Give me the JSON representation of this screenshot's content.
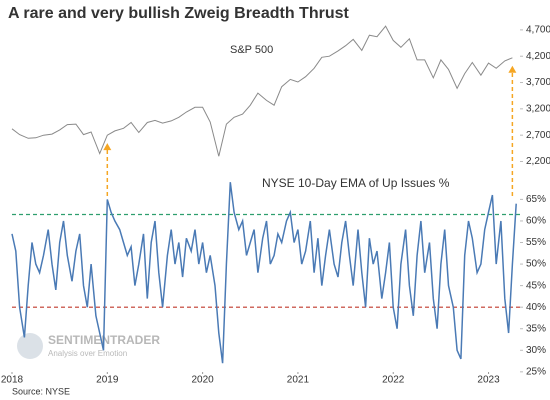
{
  "chart_data": {
    "type": "line",
    "title": "A rare and very bullish Zweig Breadth Thrust",
    "source": "Source: NYSE",
    "watermark": {
      "brand": "SENTIMENTRADER",
      "tagline": "Analysis over Emotion"
    },
    "xlim": [
      2018,
      2023.33
    ],
    "xticks": [
      2018,
      2019,
      2020,
      2021,
      2022,
      2023
    ],
    "signals": [
      2019.0,
      2023.25
    ],
    "signal_color": "#f5a623",
    "panels": [
      {
        "label": "S&P 500",
        "color": "#8a8a8a",
        "ylim": [
          2000,
          4850
        ],
        "yticks": [
          {
            "value": 2200,
            "label": "2,200"
          },
          {
            "value": 2700,
            "label": "2,700"
          },
          {
            "value": 3200,
            "label": "3,200"
          },
          {
            "value": 3700,
            "label": "3,700"
          },
          {
            "value": 4200,
            "label": "4,200"
          },
          {
            "value": 4700,
            "label": "4,700"
          }
        ],
        "x": [
          2018.0,
          2018.08,
          2018.17,
          2018.25,
          2018.33,
          2018.42,
          2018.5,
          2018.58,
          2018.67,
          2018.75,
          2018.83,
          2018.92,
          2019.0,
          2019.08,
          2019.17,
          2019.25,
          2019.33,
          2019.42,
          2019.5,
          2019.58,
          2019.67,
          2019.75,
          2019.83,
          2019.92,
          2020.0,
          2020.08,
          2020.17,
          2020.25,
          2020.33,
          2020.42,
          2020.5,
          2020.58,
          2020.67,
          2020.75,
          2020.83,
          2020.92,
          2021.0,
          2021.08,
          2021.17,
          2021.25,
          2021.33,
          2021.42,
          2021.5,
          2021.58,
          2021.67,
          2021.75,
          2021.83,
          2021.92,
          2022.0,
          2022.08,
          2022.17,
          2022.25,
          2022.33,
          2022.42,
          2022.5,
          2022.58,
          2022.67,
          2022.75,
          2022.83,
          2022.92,
          2023.0,
          2023.08,
          2023.17,
          2023.25
        ],
        "values": [
          2820,
          2710,
          2640,
          2650,
          2700,
          2720,
          2800,
          2900,
          2910,
          2710,
          2760,
          2350,
          2700,
          2780,
          2830,
          2940,
          2750,
          2940,
          2980,
          2930,
          2970,
          3040,
          3140,
          3230,
          3230,
          2950,
          2300,
          2910,
          3040,
          3100,
          3270,
          3500,
          3360,
          3270,
          3620,
          3760,
          3710,
          3810,
          3970,
          4180,
          4200,
          4300,
          4400,
          4520,
          4310,
          4600,
          4570,
          4770,
          4500,
          4370,
          4530,
          4130,
          4130,
          3790,
          4130,
          3950,
          3590,
          3870,
          4080,
          3840,
          4070,
          3970,
          4110,
          4170
        ]
      },
      {
        "label": "NYSE 10-Day EMA of Up Issues %",
        "color": "#4a7ab5",
        "ylim": [
          24.5,
          69.5
        ],
        "yticks": [
          {
            "value": 25,
            "label": "25%"
          },
          {
            "value": 30,
            "label": "30%"
          },
          {
            "value": 35,
            "label": "35%"
          },
          {
            "value": 40,
            "label": "40%"
          },
          {
            "value": 45,
            "label": "45%"
          },
          {
            "value": 50,
            "label": "50%"
          },
          {
            "value": 55,
            "label": "55%"
          },
          {
            "value": 60,
            "label": "60%"
          },
          {
            "value": 65,
            "label": "65%"
          }
        ],
        "reference_lines": [
          {
            "value": 61.5,
            "color": "#2e9e6e"
          },
          {
            "value": 40,
            "color": "#c0392b"
          }
        ],
        "x": [
          2018.0,
          2018.04,
          2018.08,
          2018.13,
          2018.17,
          2018.21,
          2018.25,
          2018.29,
          2018.33,
          2018.38,
          2018.42,
          2018.46,
          2018.5,
          2018.54,
          2018.58,
          2018.63,
          2018.67,
          2018.71,
          2018.75,
          2018.79,
          2018.83,
          2018.88,
          2018.92,
          2018.96,
          2019.0,
          2019.04,
          2019.08,
          2019.13,
          2019.17,
          2019.21,
          2019.25,
          2019.29,
          2019.33,
          2019.38,
          2019.42,
          2019.46,
          2019.5,
          2019.54,
          2019.58,
          2019.63,
          2019.67,
          2019.71,
          2019.75,
          2019.79,
          2019.83,
          2019.88,
          2019.92,
          2019.96,
          2020.0,
          2020.04,
          2020.08,
          2020.13,
          2020.17,
          2020.21,
          2020.25,
          2020.29,
          2020.33,
          2020.38,
          2020.42,
          2020.46,
          2020.5,
          2020.54,
          2020.58,
          2020.63,
          2020.67,
          2020.71,
          2020.75,
          2020.79,
          2020.83,
          2020.88,
          2020.92,
          2020.96,
          2021.0,
          2021.04,
          2021.08,
          2021.13,
          2021.17,
          2021.21,
          2021.25,
          2021.29,
          2021.33,
          2021.38,
          2021.42,
          2021.46,
          2021.5,
          2021.54,
          2021.58,
          2021.63,
          2021.67,
          2021.71,
          2021.75,
          2021.79,
          2021.83,
          2021.88,
          2021.92,
          2021.96,
          2022.0,
          2022.04,
          2022.08,
          2022.13,
          2022.17,
          2022.21,
          2022.25,
          2022.29,
          2022.33,
          2022.38,
          2022.42,
          2022.46,
          2022.5,
          2022.54,
          2022.58,
          2022.63,
          2022.67,
          2022.71,
          2022.75,
          2022.79,
          2022.83,
          2022.88,
          2022.92,
          2022.96,
          2023.0,
          2023.04,
          2023.08,
          2023.13,
          2023.17,
          2023.21,
          2023.25,
          2023.29
        ],
        "values": [
          57,
          53,
          40,
          33,
          45,
          55,
          50,
          48,
          52,
          58,
          50,
          44,
          55,
          60,
          52,
          46,
          53,
          57,
          45,
          40,
          50,
          38,
          34,
          30,
          65,
          62,
          60,
          58,
          55,
          52,
          54,
          45,
          50,
          57,
          42,
          55,
          60,
          48,
          40,
          52,
          58,
          50,
          55,
          47,
          56,
          53,
          58,
          50,
          55,
          48,
          52,
          45,
          34,
          27,
          50,
          69,
          62,
          58,
          60,
          52,
          55,
          58,
          48,
          56,
          60,
          50,
          52,
          57,
          55,
          60,
          62,
          55,
          58,
          50,
          53,
          60,
          48,
          56,
          45,
          52,
          58,
          50,
          47,
          55,
          60,
          52,
          45,
          58,
          48,
          40,
          56,
          50,
          53,
          42,
          48,
          55,
          40,
          35,
          50,
          58,
          45,
          38,
          52,
          60,
          48,
          55,
          42,
          35,
          50,
          58,
          45,
          40,
          30,
          28,
          52,
          60,
          56,
          48,
          50,
          58,
          62,
          66,
          50,
          60,
          42,
          34,
          50,
          64
        ]
      }
    ]
  }
}
